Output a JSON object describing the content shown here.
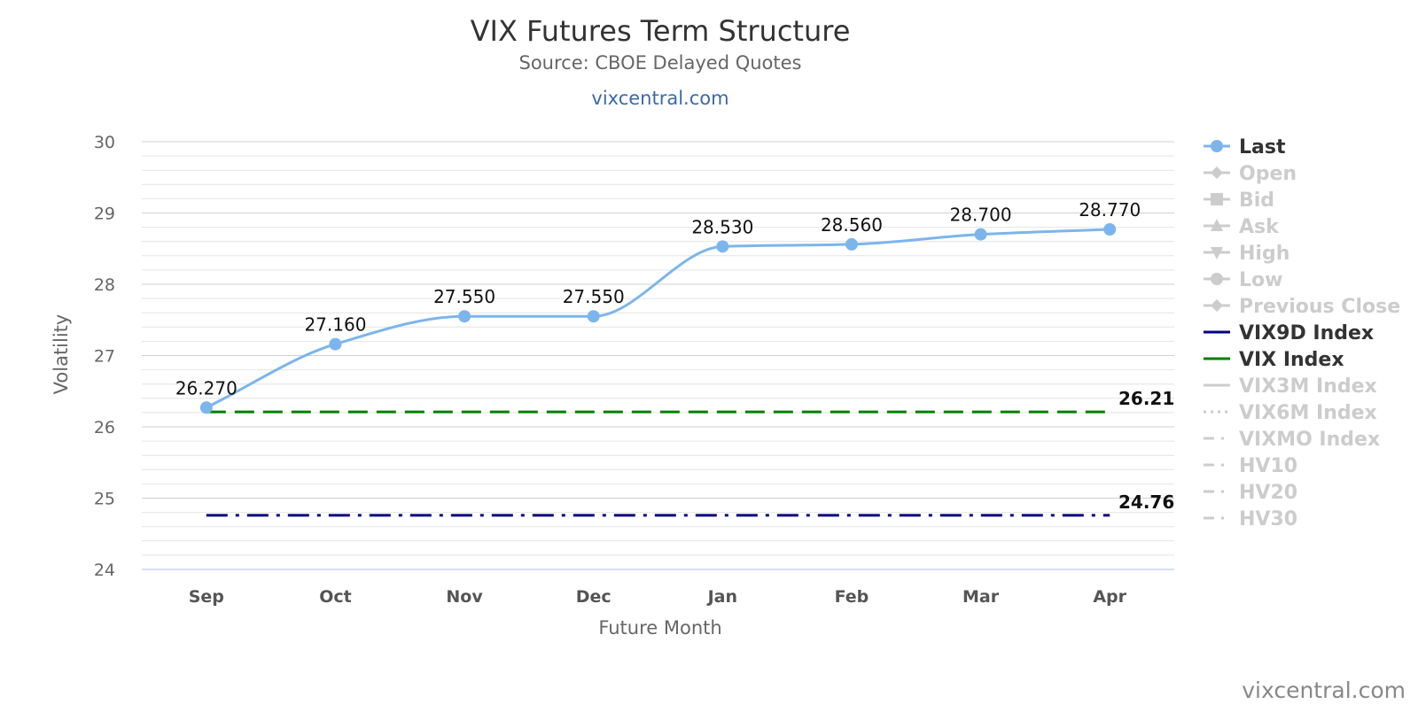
{
  "chart_data": {
    "type": "line",
    "title": "VIX Futures Term Structure",
    "subtitle": "Source: CBOE Delayed Quotes",
    "source_link": "vixcentral.com",
    "watermark": "vixcentral.com",
    "xlabel": "Future Month",
    "ylabel": "Volatility",
    "categories": [
      "Sep",
      "Oct",
      "Nov",
      "Dec",
      "Jan",
      "Feb",
      "Mar",
      "Apr"
    ],
    "ylim": [
      24,
      30
    ],
    "yticks": [
      24,
      25,
      26,
      27,
      28,
      29,
      30
    ],
    "grid": true,
    "legend_position": "right",
    "series": [
      {
        "name": "Last",
        "values": [
          26.27,
          27.16,
          27.55,
          27.55,
          28.53,
          28.56,
          28.7,
          28.77
        ],
        "labels": [
          "26.270",
          "27.160",
          "27.550",
          "27.550",
          "28.530",
          "28.560",
          "28.700",
          "28.770"
        ],
        "color": "#7cb5ec"
      },
      {
        "name": "VIX Index",
        "value": 26.21,
        "end_label": "26.21",
        "color": "#008000",
        "dash": "dashed"
      },
      {
        "name": "VIX9D Index",
        "value": 24.76,
        "end_label": "24.76",
        "color": "#000080",
        "dash": "dashdot"
      }
    ],
    "legend": [
      {
        "label": "Last",
        "active": true,
        "symbol": "circle",
        "color": "#7cb5ec"
      },
      {
        "label": "Open",
        "active": false,
        "symbol": "diamond"
      },
      {
        "label": "Bid",
        "active": false,
        "symbol": "square"
      },
      {
        "label": "Ask",
        "active": false,
        "symbol": "triangle"
      },
      {
        "label": "High",
        "active": false,
        "symbol": "triangle-down"
      },
      {
        "label": "Low",
        "active": false,
        "symbol": "circle"
      },
      {
        "label": "Previous Close",
        "active": false,
        "symbol": "diamond"
      },
      {
        "label": "VIX9D Index",
        "active": true,
        "symbol": "line",
        "color": "#000080"
      },
      {
        "label": "VIX Index",
        "active": true,
        "symbol": "line",
        "color": "#008000"
      },
      {
        "label": "VIX3M Index",
        "active": false,
        "symbol": "line"
      },
      {
        "label": "VIX6M Index",
        "active": false,
        "symbol": "dotted"
      },
      {
        "label": "VIXMO Index",
        "active": false,
        "symbol": "dashdot"
      },
      {
        "label": "HV10",
        "active": false,
        "symbol": "dashdot"
      },
      {
        "label": "HV20",
        "active": false,
        "symbol": "dashdot"
      },
      {
        "label": "HV30",
        "active": false,
        "symbol": "dashdot"
      }
    ]
  }
}
